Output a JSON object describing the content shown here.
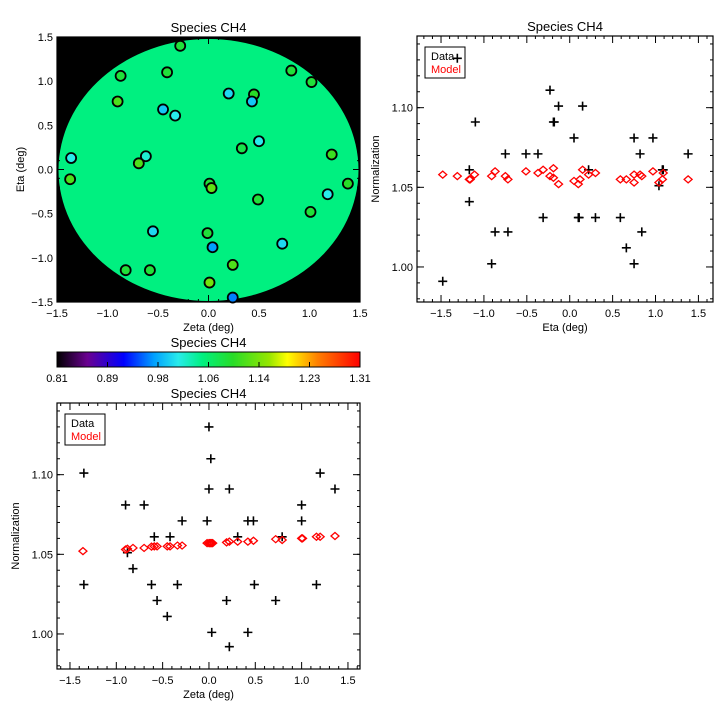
{
  "chart_data": [
    {
      "type": "scatter",
      "kind": "map",
      "title": "Species CH4",
      "xlabel": "Zeta (deg)",
      "ylabel": "Eta (deg)",
      "xlim": [
        -1.5,
        1.5
      ],
      "ylim": [
        -1.5,
        1.5
      ],
      "xticks": [
        "-1.5",
        "-1.0",
        "-0.5",
        "0.0",
        "0.5",
        "1.0",
        "1.5"
      ],
      "yticks": [
        "-1.5",
        "-1.0",
        "-0.5",
        "0.0",
        "0.5",
        "1.0",
        "1.5"
      ],
      "background_value": 1.05,
      "points": [
        [
          -0.28,
          1.4,
          1.09
        ],
        [
          -0.87,
          1.06,
          1.09
        ],
        [
          -0.41,
          1.1,
          1.09
        ],
        [
          0.82,
          1.12,
          1.09
        ],
        [
          1.02,
          0.99,
          1.09
        ],
        [
          0.2,
          0.86,
          1.0
        ],
        [
          0.45,
          0.85,
          1.1
        ],
        [
          0.43,
          0.77,
          0.99
        ],
        [
          -0.9,
          0.77,
          1.12
        ],
        [
          -0.45,
          0.68,
          0.99
        ],
        [
          -0.33,
          0.61,
          1.01
        ],
        [
          0.5,
          0.32,
          1.01
        ],
        [
          0.33,
          0.24,
          1.08
        ],
        [
          1.22,
          0.17,
          1.11
        ],
        [
          -1.36,
          0.13,
          1.01
        ],
        [
          -0.62,
          0.15,
          1.02
        ],
        [
          -0.69,
          0.07,
          1.12
        ],
        [
          -1.37,
          -0.11,
          1.12
        ],
        [
          0.01,
          -0.16,
          1.09
        ],
        [
          0.03,
          -0.21,
          1.13
        ],
        [
          0.49,
          -0.34,
          1.09
        ],
        [
          1.38,
          -0.16,
          1.1
        ],
        [
          1.18,
          -0.28,
          1.01
        ],
        [
          1.01,
          -0.48,
          1.09
        ],
        [
          -0.55,
          -0.7,
          1.0
        ],
        [
          -0.01,
          -0.72,
          1.09
        ],
        [
          0.04,
          -0.88,
          0.97
        ],
        [
          0.73,
          -0.84,
          1.0
        ],
        [
          -0.82,
          -1.14,
          1.09
        ],
        [
          -0.58,
          -1.14,
          1.09
        ],
        [
          0.24,
          -1.08,
          1.12
        ],
        [
          0.01,
          -1.28,
          1.14
        ],
        [
          0.24,
          -1.45,
          0.96
        ]
      ]
    },
    {
      "type": "scatter",
      "title": "Species CH4",
      "xlabel": "Eta (deg)",
      "ylabel": "Normalization",
      "xlim": [
        -1.78,
        1.67
      ],
      "ylim": [
        0.978,
        1.145
      ],
      "xticks": [
        "-1.5",
        "-1.0",
        "-0.5",
        "0.0",
        "0.5",
        "1.0",
        "1.5"
      ],
      "yticks": [
        "1.00",
        "1.05",
        "1.10"
      ],
      "legend": {
        "position": "top-left",
        "entries": [
          "Data",
          "Model"
        ]
      },
      "series": [
        {
          "name": "Data",
          "marker": "plus",
          "color": "#000000",
          "points": [
            [
              -1.48,
              0.991
            ],
            [
              -1.1,
              1.091
            ],
            [
              -1.17,
              1.061
            ],
            [
              -1.17,
              1.041
            ],
            [
              -0.87,
              1.022
            ],
            [
              -0.91,
              1.002
            ],
            [
              -0.75,
              1.071
            ],
            [
              -0.72,
              1.022
            ],
            [
              -0.51,
              1.071
            ],
            [
              -0.37,
              1.071
            ],
            [
              -0.31,
              1.031
            ],
            [
              -0.23,
              1.111
            ],
            [
              -0.13,
              1.101
            ],
            [
              -0.19,
              1.091
            ],
            [
              -0.18,
              1.091
            ],
            [
              0.05,
              1.081
            ],
            [
              0.15,
              1.101
            ],
            [
              0.1,
              1.031
            ],
            [
              0.11,
              1.031
            ],
            [
              0.22,
              1.061
            ],
            [
              0.3,
              1.031
            ],
            [
              0.59,
              1.031
            ],
            [
              0.66,
              1.012
            ],
            [
              0.75,
              1.081
            ],
            [
              0.75,
              1.002
            ],
            [
              0.82,
              1.071
            ],
            [
              0.84,
              1.022
            ],
            [
              0.97,
              1.081
            ],
            [
              1.04,
              1.051
            ],
            [
              1.08,
              1.061
            ],
            [
              1.09,
              1.061
            ],
            [
              1.38,
              1.071
            ],
            [
              -1.31,
              1.131
            ]
          ]
        },
        {
          "name": "Model",
          "marker": "diamond",
          "color": "#ff0000",
          "points": [
            [
              -1.48,
              1.058
            ],
            [
              -1.31,
              1.057
            ],
            [
              -1.17,
              1.055
            ],
            [
              -1.16,
              1.055
            ],
            [
              -1.11,
              1.058
            ],
            [
              -0.91,
              1.057
            ],
            [
              -0.87,
              1.06
            ],
            [
              -0.75,
              1.057
            ],
            [
              -0.72,
              1.055
            ],
            [
              -0.51,
              1.06
            ],
            [
              -0.37,
              1.059
            ],
            [
              -0.31,
              1.061
            ],
            [
              -0.23,
              1.057
            ],
            [
              -0.19,
              1.062
            ],
            [
              -0.19,
              1.056
            ],
            [
              -0.13,
              1.052
            ],
            [
              0.05,
              1.054
            ],
            [
              0.1,
              1.052
            ],
            [
              0.12,
              1.055
            ],
            [
              0.15,
              1.061
            ],
            [
              0.22,
              1.058
            ],
            [
              0.3,
              1.059
            ],
            [
              0.59,
              1.055
            ],
            [
              0.66,
              1.055
            ],
            [
              0.75,
              1.058
            ],
            [
              0.75,
              1.053
            ],
            [
              0.82,
              1.058
            ],
            [
              0.84,
              1.057
            ],
            [
              0.97,
              1.06
            ],
            [
              1.04,
              1.053
            ],
            [
              1.08,
              1.055
            ],
            [
              1.09,
              1.059
            ],
            [
              1.38,
              1.055
            ]
          ]
        }
      ]
    },
    {
      "type": "scatter",
      "title": "Species CH4",
      "xlabel": "Zeta (deg)",
      "ylabel": "Normalization",
      "xlim": [
        -1.64,
        1.63
      ],
      "ylim": [
        0.978,
        1.145
      ],
      "xticks": [
        "-1.5",
        "-1.0",
        "-0.5",
        "0.0",
        "0.5",
        "1.0",
        "1.5"
      ],
      "yticks": [
        "1.00",
        "1.05",
        "1.10"
      ],
      "legend": {
        "position": "top-left",
        "entries": [
          "Data",
          "Model"
        ]
      },
      "series": [
        {
          "name": "Data",
          "marker": "plus",
          "color": "#000000",
          "points": [
            [
              -1.35,
              1.101
            ],
            [
              -1.35,
              1.031
            ],
            [
              -0.9,
              1.081
            ],
            [
              -0.88,
              1.051
            ],
            [
              -0.82,
              1.041
            ],
            [
              -0.7,
              1.081
            ],
            [
              -0.62,
              1.031
            ],
            [
              -0.59,
              1.061
            ],
            [
              -0.56,
              1.021
            ],
            [
              -0.45,
              1.011
            ],
            [
              -0.42,
              1.061
            ],
            [
              -0.34,
              1.031
            ],
            [
              -0.29,
              1.071
            ],
            [
              0.0,
              1.13
            ],
            [
              0.02,
              1.11
            ],
            [
              0.0,
              1.091
            ],
            [
              -0.02,
              1.071
            ],
            [
              0.03,
              1.001
            ],
            [
              0.22,
              1.091
            ],
            [
              0.19,
              1.021
            ],
            [
              0.22,
              0.992
            ],
            [
              0.31,
              1.061
            ],
            [
              0.42,
              1.071
            ],
            [
              0.48,
              1.071
            ],
            [
              0.42,
              1.001
            ],
            [
              0.49,
              1.031
            ],
            [
              0.72,
              1.021
            ],
            [
              0.79,
              1.061
            ],
            [
              1.0,
              1.081
            ],
            [
              1.0,
              1.071
            ],
            [
              1.16,
              1.031
            ],
            [
              1.2,
              1.101
            ],
            [
              1.36,
              1.091
            ]
          ]
        },
        {
          "name": "Model",
          "marker": "diamond",
          "color": "#ff0000",
          "points": [
            [
              -1.36,
              1.052
            ],
            [
              -0.9,
              1.053
            ],
            [
              -0.88,
              1.0535
            ],
            [
              -0.82,
              1.054
            ],
            [
              -0.7,
              1.054
            ],
            [
              -0.62,
              1.0548
            ],
            [
              -0.59,
              1.055
            ],
            [
              -0.56,
              1.055
            ],
            [
              -0.45,
              1.055
            ],
            [
              -0.42,
              1.055
            ],
            [
              -0.34,
              1.0555
            ],
            [
              -0.29,
              1.0555
            ],
            [
              -0.02,
              1.057
            ],
            [
              0.0,
              1.057
            ],
            [
              0.01,
              1.057
            ],
            [
              0.02,
              1.057
            ],
            [
              0.03,
              1.057
            ],
            [
              0.04,
              1.057
            ],
            [
              0.19,
              1.0575
            ],
            [
              0.22,
              1.058
            ],
            [
              0.31,
              1.058
            ],
            [
              0.42,
              1.058
            ],
            [
              0.48,
              1.0585
            ],
            [
              0.72,
              1.0595
            ],
            [
              0.79,
              1.059
            ],
            [
              1.0,
              1.06
            ],
            [
              1.01,
              1.06
            ],
            [
              1.16,
              1.061
            ],
            [
              1.2,
              1.061
            ],
            [
              1.36,
              1.0615
            ]
          ]
        }
      ]
    }
  ],
  "colorbar": {
    "title": "Species CH4",
    "range": [
      0.81,
      1.31
    ],
    "labels": [
      "0.81",
      "0.89",
      "0.98",
      "1.06",
      "1.14",
      "1.23",
      "1.31"
    ]
  }
}
